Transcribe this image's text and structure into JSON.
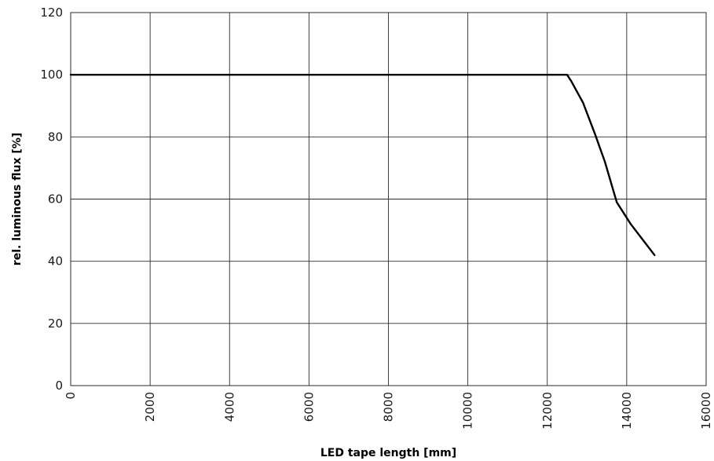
{
  "chart_data": {
    "type": "line",
    "title": "",
    "xlabel": "LED tape length [mm]",
    "ylabel": "rel. luminous flux [%]",
    "xlim": [
      0,
      16000
    ],
    "ylim": [
      0,
      120
    ],
    "x_ticks": [
      0,
      2000,
      4000,
      6000,
      8000,
      10000,
      12000,
      14000,
      16000
    ],
    "y_ticks": [
      0,
      20,
      40,
      60,
      80,
      100,
      120
    ],
    "x_tick_labels": [
      "0",
      "2000",
      "4000",
      "6000",
      "8000",
      "10000",
      "12000",
      "14000",
      "16000"
    ],
    "y_tick_labels": [
      "0",
      "20",
      "40",
      "60",
      "80",
      "100",
      "120"
    ],
    "x_tick_label_rotation": "vertical",
    "grid": true,
    "legend": "none",
    "series": [
      {
        "color": "#000000",
        "x": [
          0,
          12500,
          12600,
          12900,
          13200,
          13450,
          13750,
          14100,
          14400,
          14700
        ],
        "y": [
          100,
          100,
          98,
          91,
          81,
          72,
          59,
          52,
          47,
          42
        ]
      }
    ]
  }
}
